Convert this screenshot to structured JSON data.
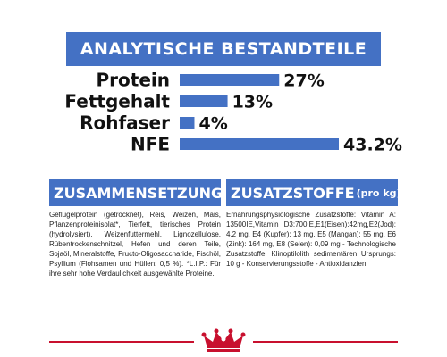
{
  "header": {
    "title": "ANALYTISCHE BESTANDTEILE"
  },
  "chart_data": {
    "type": "bar",
    "orientation": "horizontal",
    "title": "ANALYTISCHE BESTANDTEILE",
    "categories": [
      "Protein",
      "Fettgehalt",
      "Rohfaser",
      "NFE"
    ],
    "values": [
      27,
      13,
      4,
      43.2
    ],
    "value_labels": [
      "27%",
      "13%",
      "4%",
      "43.2%"
    ],
    "unit": "%",
    "bar_color": "#4471c4"
  },
  "composition": {
    "title": "ZUSAMMENSETZUNG",
    "text": "Geflügelprotein (getrocknet), Reis, Weizen, Mais, Pflanzenproteinisolat*, Tierfett, tierisches Protein (hydrolysiert), Weizenfuttermehl, Lignozellulose, Rübentrockenschnitzel, Hefen und deren Teile, Sojaöl, Mineralstoffe, Fructo-Oligosaccharide, Fischöl, Psyllium (Flohsamen und Hüllen: 0,5 %). *L.I.P.: Für ihre sehr hohe Verdaulichkeit ausgewählte Proteine."
  },
  "additives": {
    "title": "ZUSATZSTOFFE",
    "title_suffix": "(pro kg)",
    "text": "Ernährungsphysiologische Zusatzstoffe: Vitamin A: 13500IE,Vitamin D3:700IE,E1(Eisen):42mg,E2(Jod): 4,2 mg, E4 (Kupfer): 13 mg, E5 (Mangan): 55 mg, E6 (Zink): 164 mg, E8 (Selen): 0,09 mg - Technologische Zusatzstoffe: Klinoptilolith sedimentären Ursprungs: 10 g - Konservierungsstoffe - Antioxidanzien."
  },
  "colors": {
    "accent": "#4471c4",
    "brand_red": "#c8102e"
  },
  "logo": {
    "icon": "royal-canin-crown-icon"
  }
}
